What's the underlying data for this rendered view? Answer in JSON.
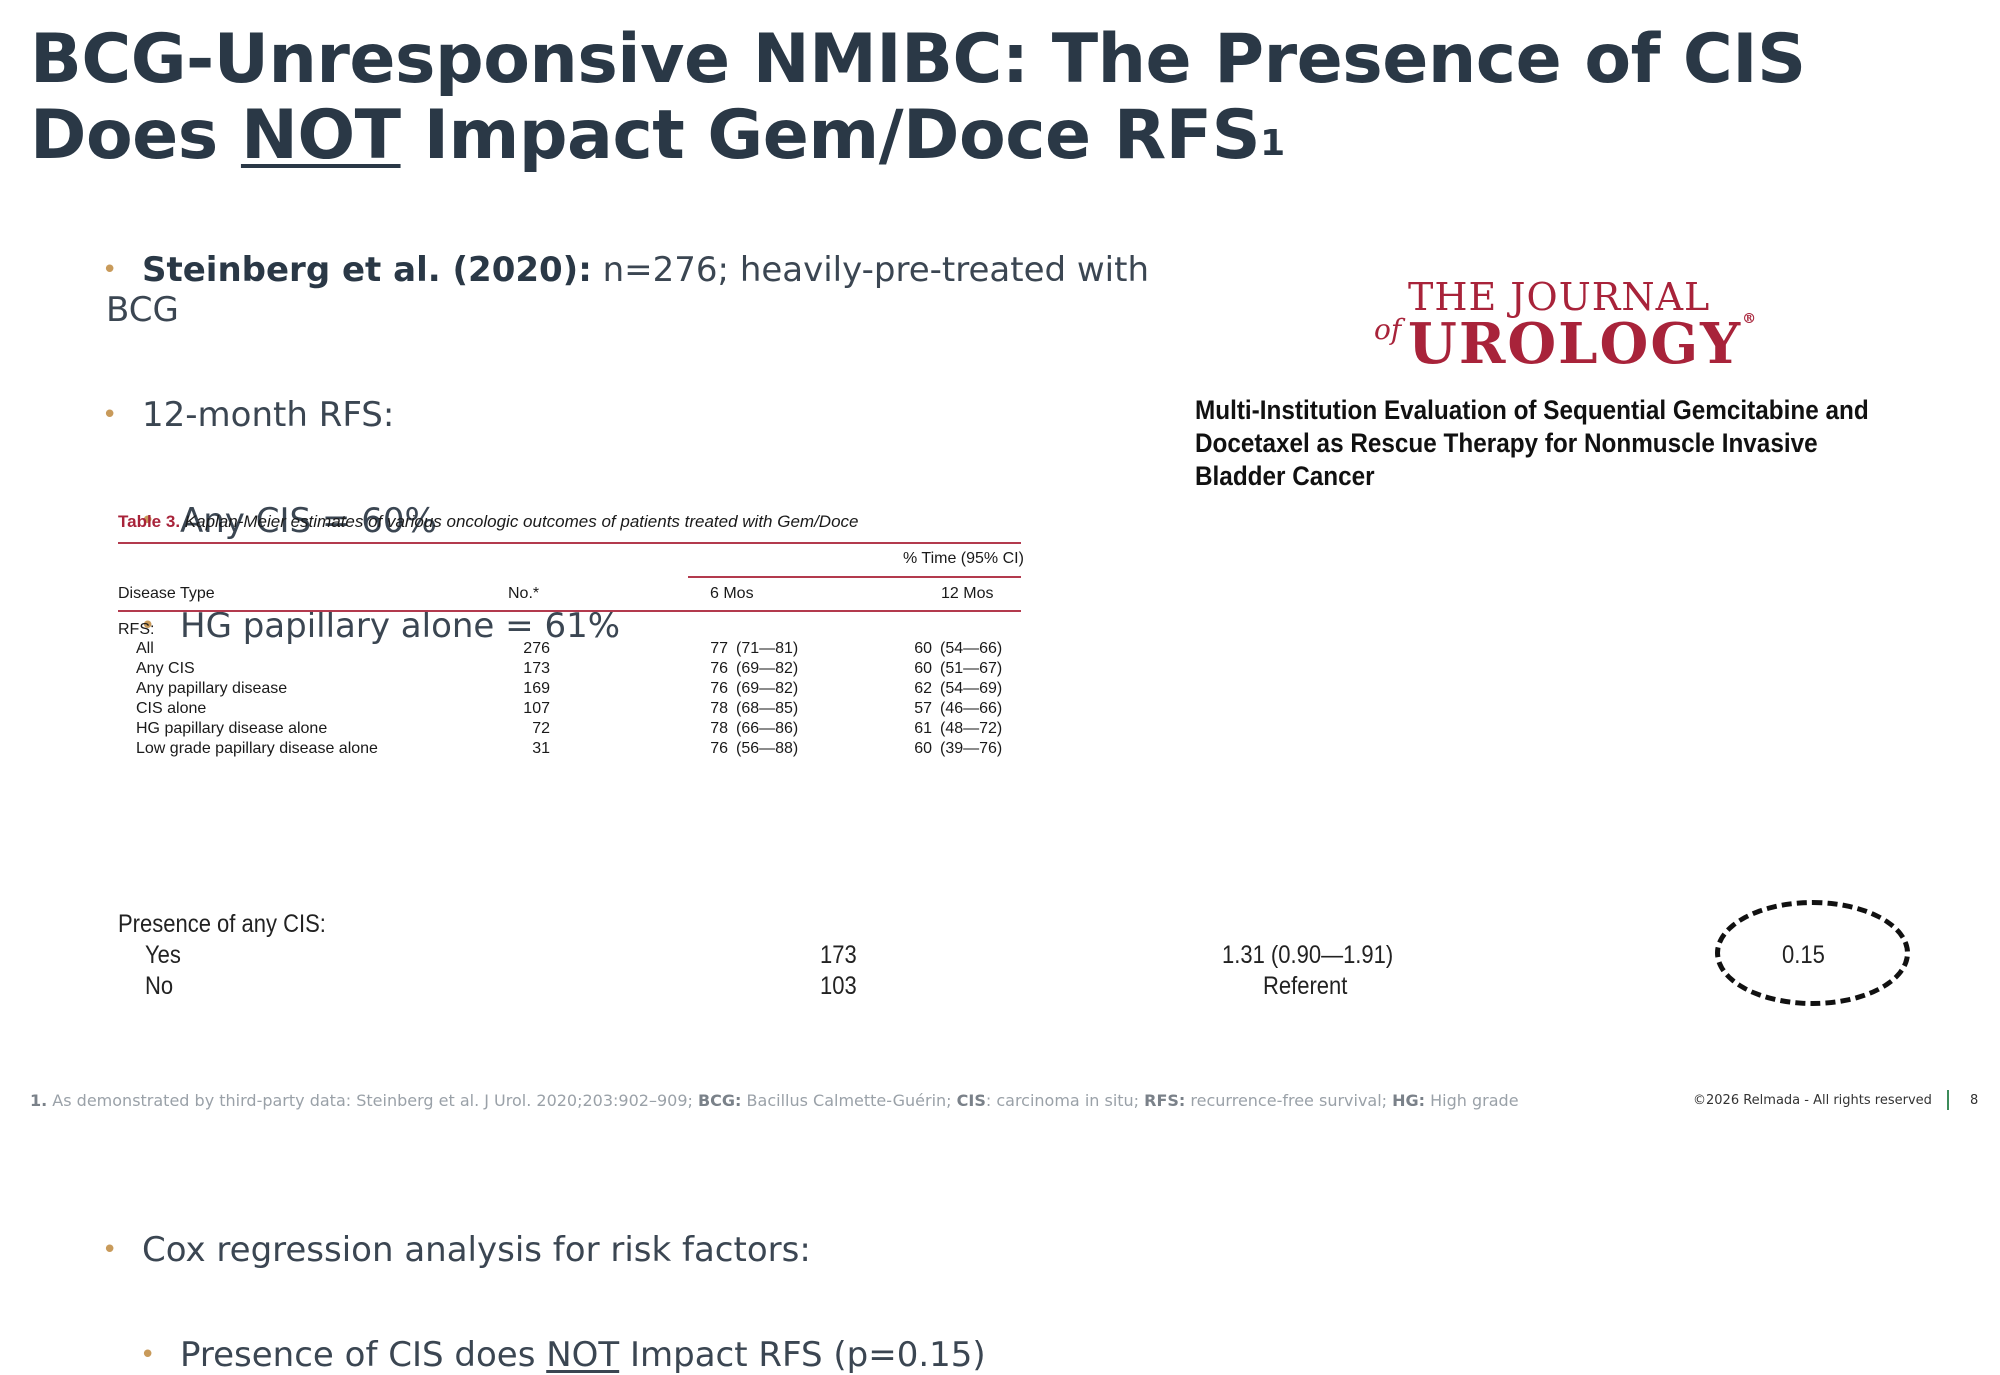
{
  "title": {
    "line1": "BCG-Unresponsive NMIBC: The Presence of CIS",
    "line2_pre": "Does ",
    "line2_underline": "NOT",
    "line2_post": " Impact Gem/Doce RFS",
    "sup": "1"
  },
  "bullets": {
    "b1_lead": "Steinberg et al. (2020):",
    "b1_rest": " n=276; heavily-pre-treated with BCG",
    "b2": "12-month RFS:",
    "b2a": "Any CIS = 60%",
    "b2b": "HG papillary alone = 61%",
    "b3": "Cox regression analysis for risk factors:",
    "b3a_pre": "Presence of CIS does ",
    "b3a_underline": "NOT",
    "b3a_post": " Impact RFS (p=0.15)"
  },
  "journal": {
    "of": "of",
    "line1": "THE JOURNAL",
    "line2": "UROLOGY",
    "reg": "®"
  },
  "article_title": "Multi-Institution Evaluation of Sequential Gemcitabine and Docetaxel as Rescue Therapy for Nonmuscle Invasive Bladder Cancer",
  "table": {
    "caption_label": "Table 3.",
    "caption_text": " Kaplan-Meier estimates of various oncologic outcomes of patients treated with Gem/Doce",
    "group_header": "% Time (95% CI)",
    "headers": {
      "type": "Disease Type",
      "no": "No.*",
      "m6": "6 Mos",
      "m12": "12 Mos"
    },
    "section": "RFS:",
    "rows": [
      {
        "label": "All",
        "no": "276",
        "m6": "77",
        "m6ci": "(71—81)",
        "m12": "60",
        "m12ci": "(54—66)"
      },
      {
        "label": "Any CIS",
        "no": "173",
        "m6": "76",
        "m6ci": "(69—82)",
        "m12": "60",
        "m12ci": "(51—67)"
      },
      {
        "label": "Any papillary disease",
        "no": "169",
        "m6": "76",
        "m6ci": "(69—82)",
        "m12": "62",
        "m12ci": "(54—69)"
      },
      {
        "label": "CIS alone",
        "no": "107",
        "m6": "78",
        "m6ci": "(68—85)",
        "m12": "57",
        "m12ci": "(46—66)"
      },
      {
        "label": "HG papillary disease alone",
        "no": "72",
        "m6": "78",
        "m6ci": "(66—86)",
        "m12": "61",
        "m12ci": "(48—72)"
      },
      {
        "label": "Low grade papillary disease alone",
        "no": "31",
        "m6": "76",
        "m6ci": "(56—88)",
        "m12": "60",
        "m12ci": "(39—76)"
      }
    ]
  },
  "cox": {
    "header": "Presence of any CIS:",
    "yes": {
      "label": "Yes",
      "n": "173",
      "hr": "1.31 (0.90—1.91)",
      "p": "0.15"
    },
    "no": {
      "label": "No",
      "n": "103",
      "hr": "Referent"
    }
  },
  "footnote": {
    "n1": "1.",
    "t1": " As demonstrated by third-party data: Steinberg et al. J Urol. 2020;203:902–909; ",
    "k1": "BCG:",
    "v1": " Bacillus Calmette-Guérin; ",
    "k2": "CIS",
    "v2": ": carcinoma in situ; ",
    "k3": "RFS:",
    "v3": " recurrence-free survival; ",
    "k4": "HG:",
    "v4": " High grade"
  },
  "copyright": "©2026 Relmada - All rights reserved",
  "page_number": "8"
}
